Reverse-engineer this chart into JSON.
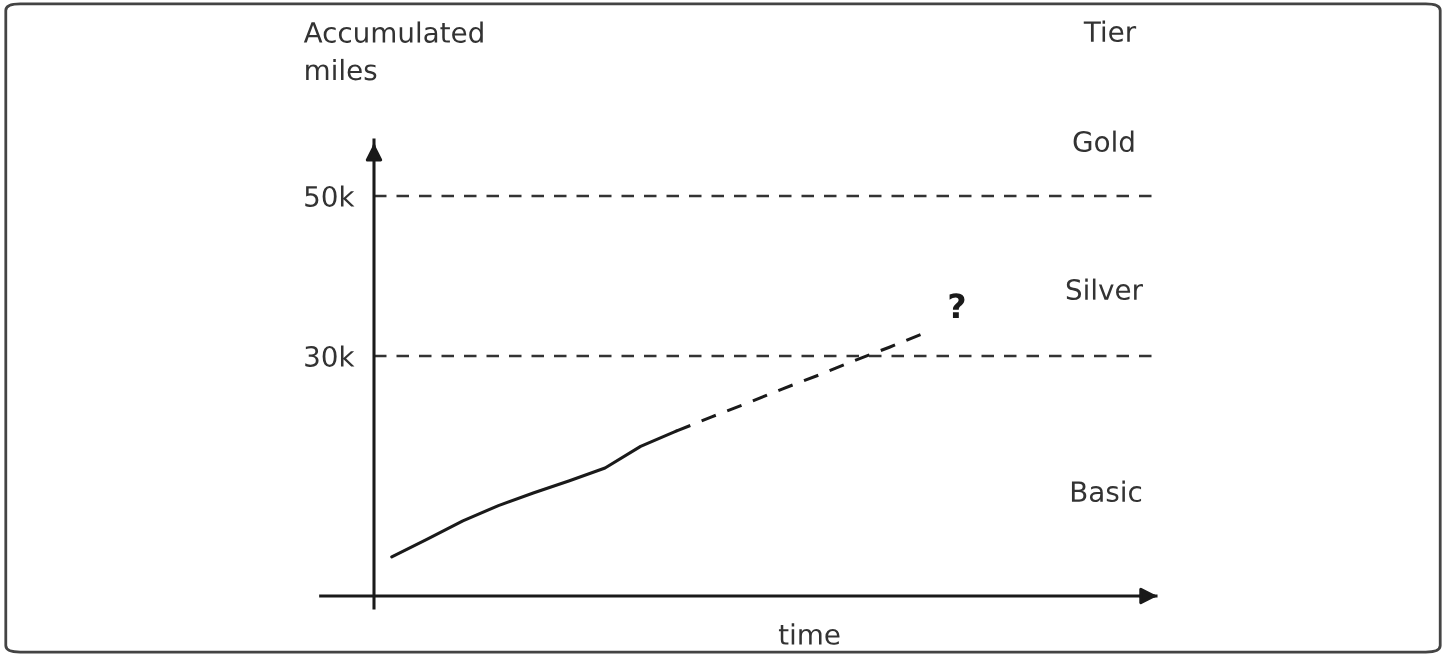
{
  "chart_data": {
    "type": "line",
    "xlabel": "time",
    "ylabel": "Accumulated\nmiles",
    "categories": [
      null,
      null,
      null,
      null,
      null,
      null,
      null,
      null,
      null,
      null,
      null,
      null,
      null,
      null,
      null,
      null,
      null,
      null,
      null,
      null,
      null,
      null
    ],
    "series": [
      {
        "color": "#1a1a1a",
        "line_style": "solid",
        "values": [
          4.9,
          7.1,
          9.4,
          11.3,
          12.9,
          14.4,
          16.0,
          18.7,
          20.6,
          null,
          null,
          null,
          null,
          null,
          null,
          null,
          null,
          null,
          null,
          null,
          null,
          null
        ]
      },
      {
        "color": "#1a1a1a",
        "line_style": "dashed",
        "values": [
          null,
          null,
          null,
          null,
          null,
          null,
          null,
          null,
          20.6,
          22.4,
          24.1,
          25.9,
          27.6,
          29.4,
          31.1,
          32.9,
          null,
          null,
          null,
          null,
          null,
          null
        ]
      }
    ],
    "ylim": [
      0,
      57
    ],
    "yticks": [
      {
        "value": 30,
        "label": "30k"
      },
      {
        "value": 50,
        "label": "50k"
      }
    ],
    "ref_lines": [
      {
        "axis": "y",
        "value": 30,
        "color": "#333333",
        "line_style": "dashed"
      },
      {
        "axis": "y",
        "value": 50,
        "color": "#333333",
        "line_style": "dashed"
      }
    ],
    "annotations": [
      "Tier",
      "Gold",
      "Silver",
      "Basic",
      "?"
    ],
    "grid": false,
    "legend": false,
    "tick_labels": "y",
    "marker": "none"
  }
}
